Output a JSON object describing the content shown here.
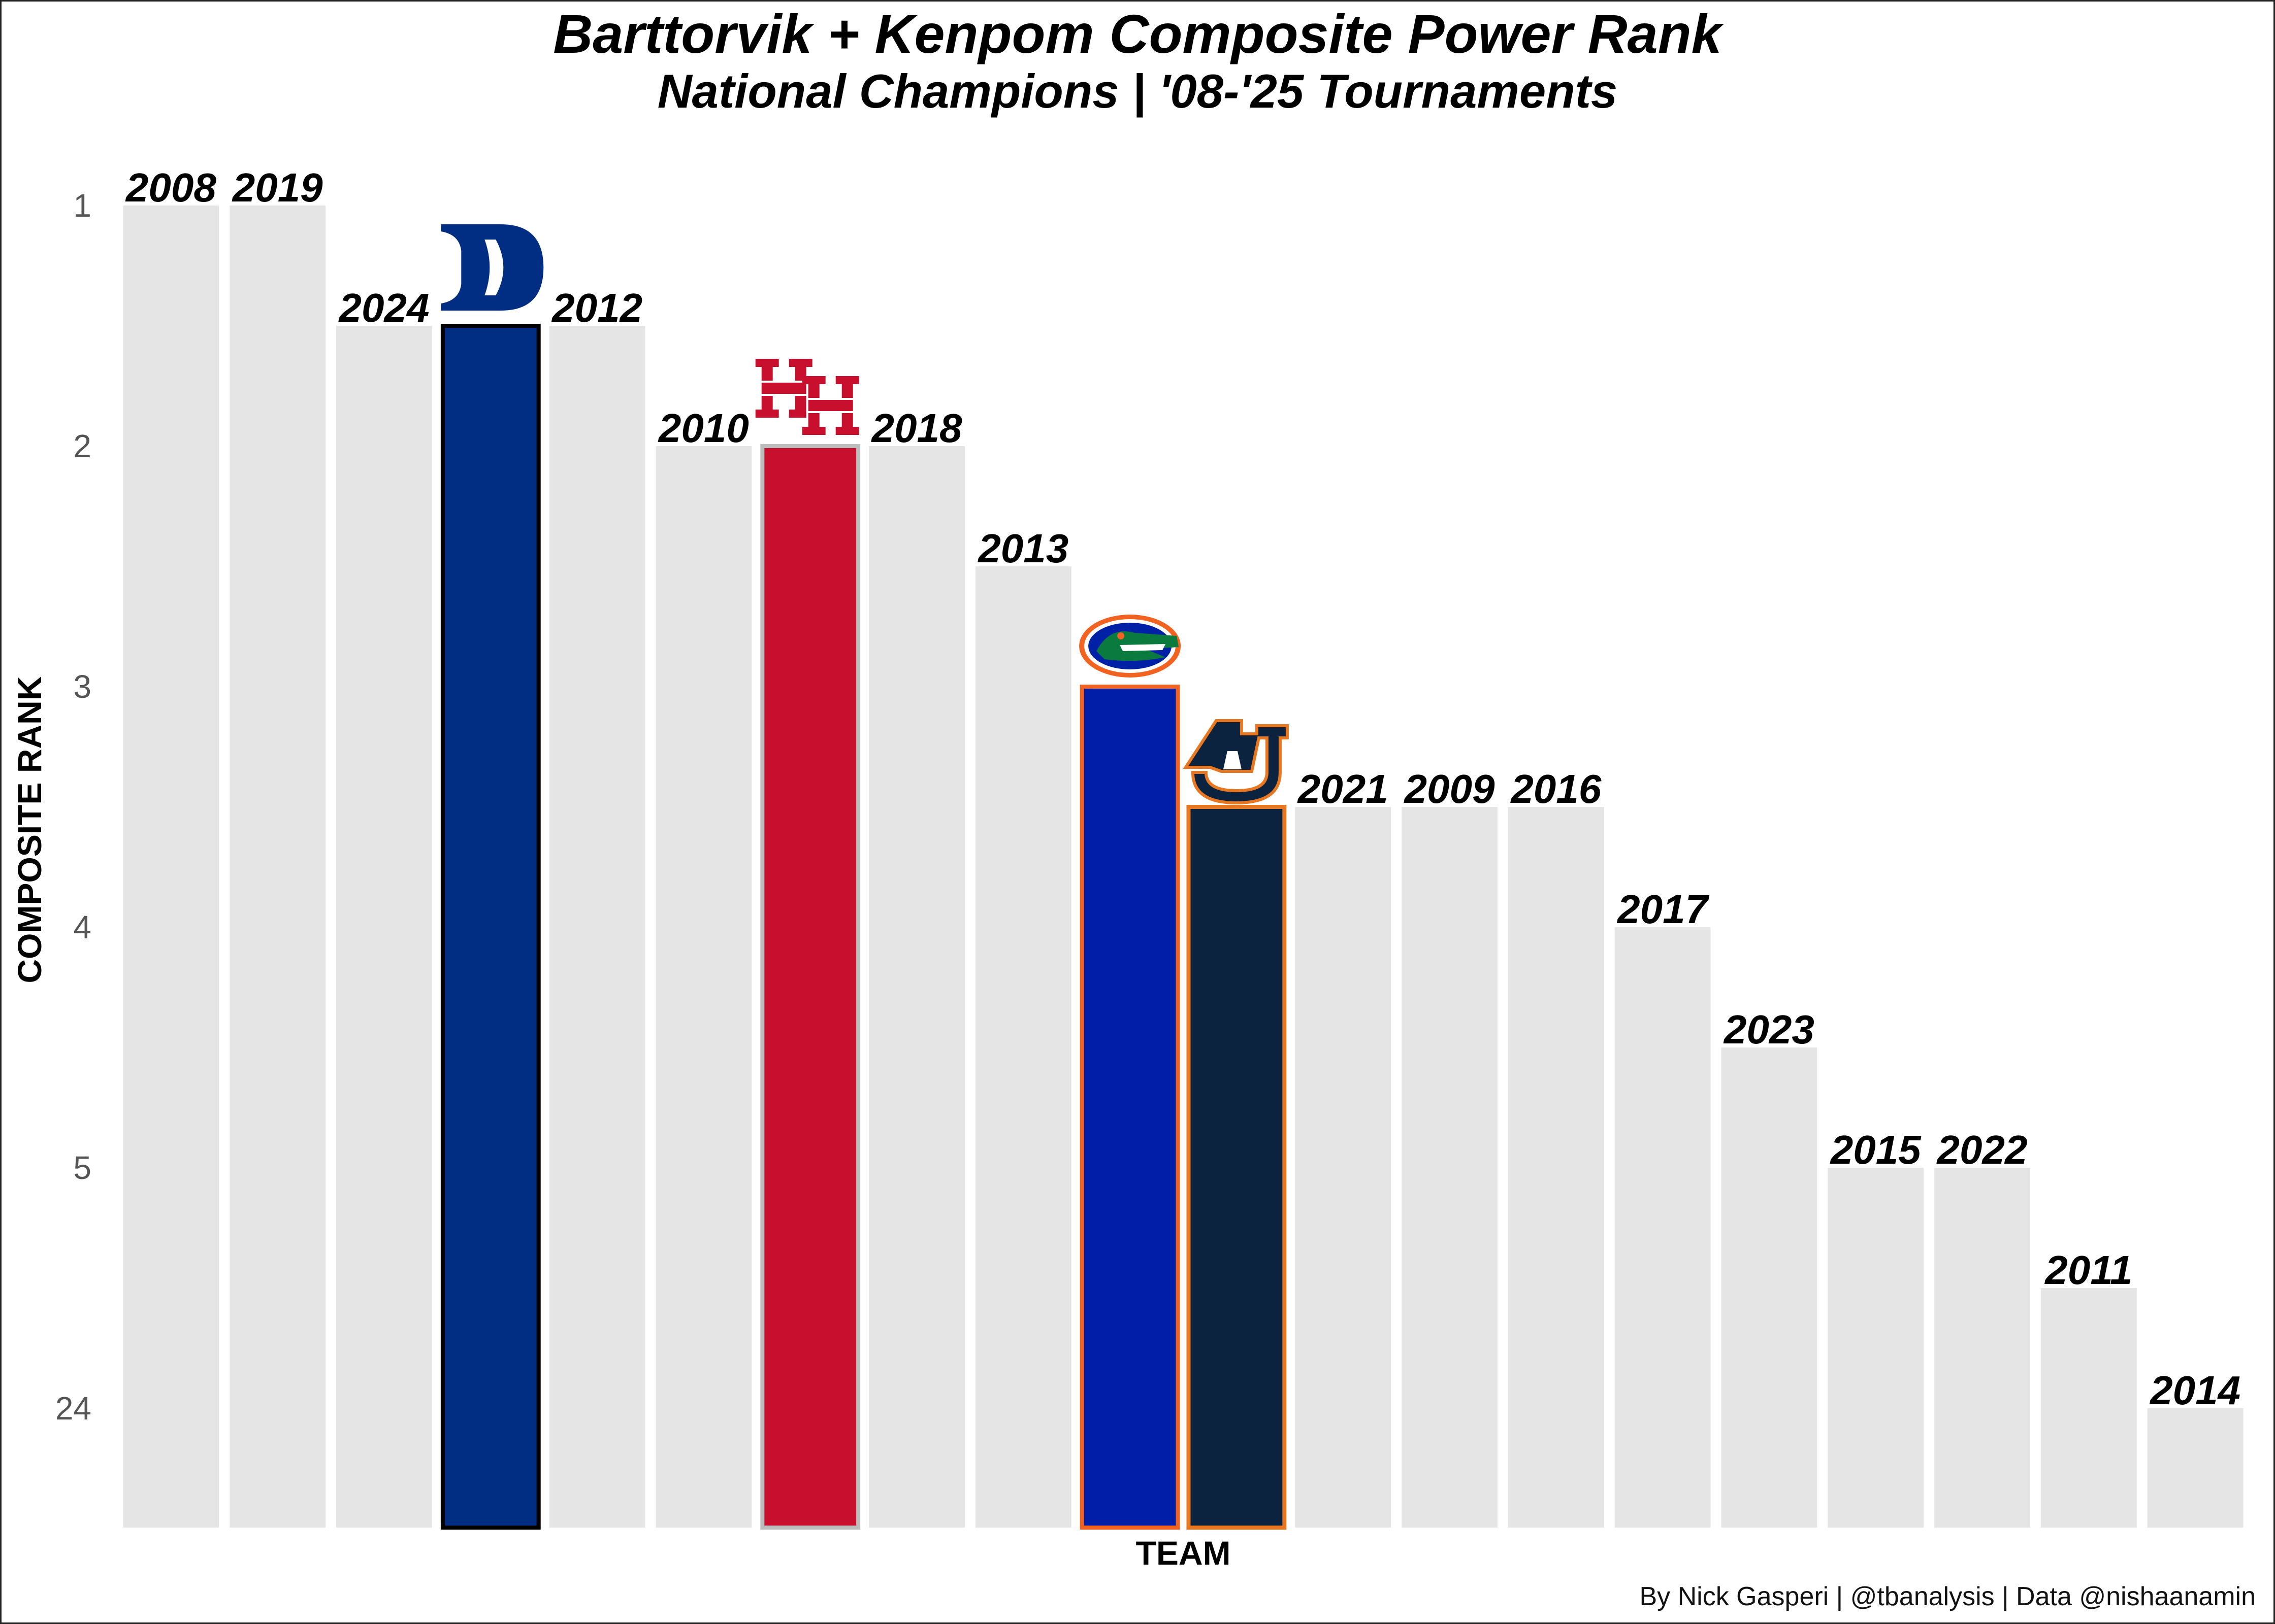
{
  "title": "Barttorvik + Kenpom Composite Power Rank",
  "subtitle": "National Champions | '08-'25 Tournaments",
  "caption": "By Nick Gasperi | @tbanalysis | Data @nishaanamin",
  "chart_data": {
    "type": "bar",
    "title": "Barttorvik + Kenpom Composite Power Rank",
    "subtitle": "National Champions | '08-'25 Tournaments",
    "xlabel": "TEAM",
    "ylabel": "COMPOSITE RANK",
    "y_ticks": [
      "1",
      "2",
      "3",
      "4",
      "5",
      "24"
    ],
    "y_tick_values": [
      1,
      2,
      3,
      4,
      5,
      6
    ],
    "y_reversed": true,
    "grid": false,
    "legend": "none",
    "categories": [
      "2008",
      "2019",
      "2024",
      "Duke",
      "2012",
      "2010",
      "Houston",
      "2018",
      "2013",
      "Florida",
      "Auburn",
      "2021",
      "2009",
      "2016",
      "2017",
      "2023",
      "2015",
      "2022",
      "2011",
      "2014"
    ],
    "values": [
      1,
      1,
      1.5,
      1.5,
      1.5,
      2,
      2,
      2,
      2.5,
      3,
      3.5,
      3.5,
      3.5,
      3.5,
      4,
      4.5,
      5,
      5,
      5.5,
      6
    ],
    "bar_labels": [
      "2008",
      "2019",
      "2024",
      "",
      "2012",
      "2010",
      "",
      "2018",
      "2013",
      "",
      "",
      "2021",
      "2009",
      "2016",
      "2017",
      "2023",
      "2015",
      "2022",
      "2011",
      "2014"
    ],
    "highlight_bars": [
      {
        "index": 3,
        "logo": "duke-logo",
        "fill": "#012E82",
        "stroke": "#000000"
      },
      {
        "index": 6,
        "logo": "houston-logo",
        "fill": "#C8102E",
        "stroke": "#BDBDBD"
      },
      {
        "index": 9,
        "logo": "florida-gator-logo",
        "fill": "#001EA7",
        "stroke": "#F26322"
      },
      {
        "index": 10,
        "logo": "auburn-logo",
        "fill": "#0C2340",
        "stroke": "#E87722"
      }
    ],
    "base_bar_color": "#E5E5E5"
  }
}
